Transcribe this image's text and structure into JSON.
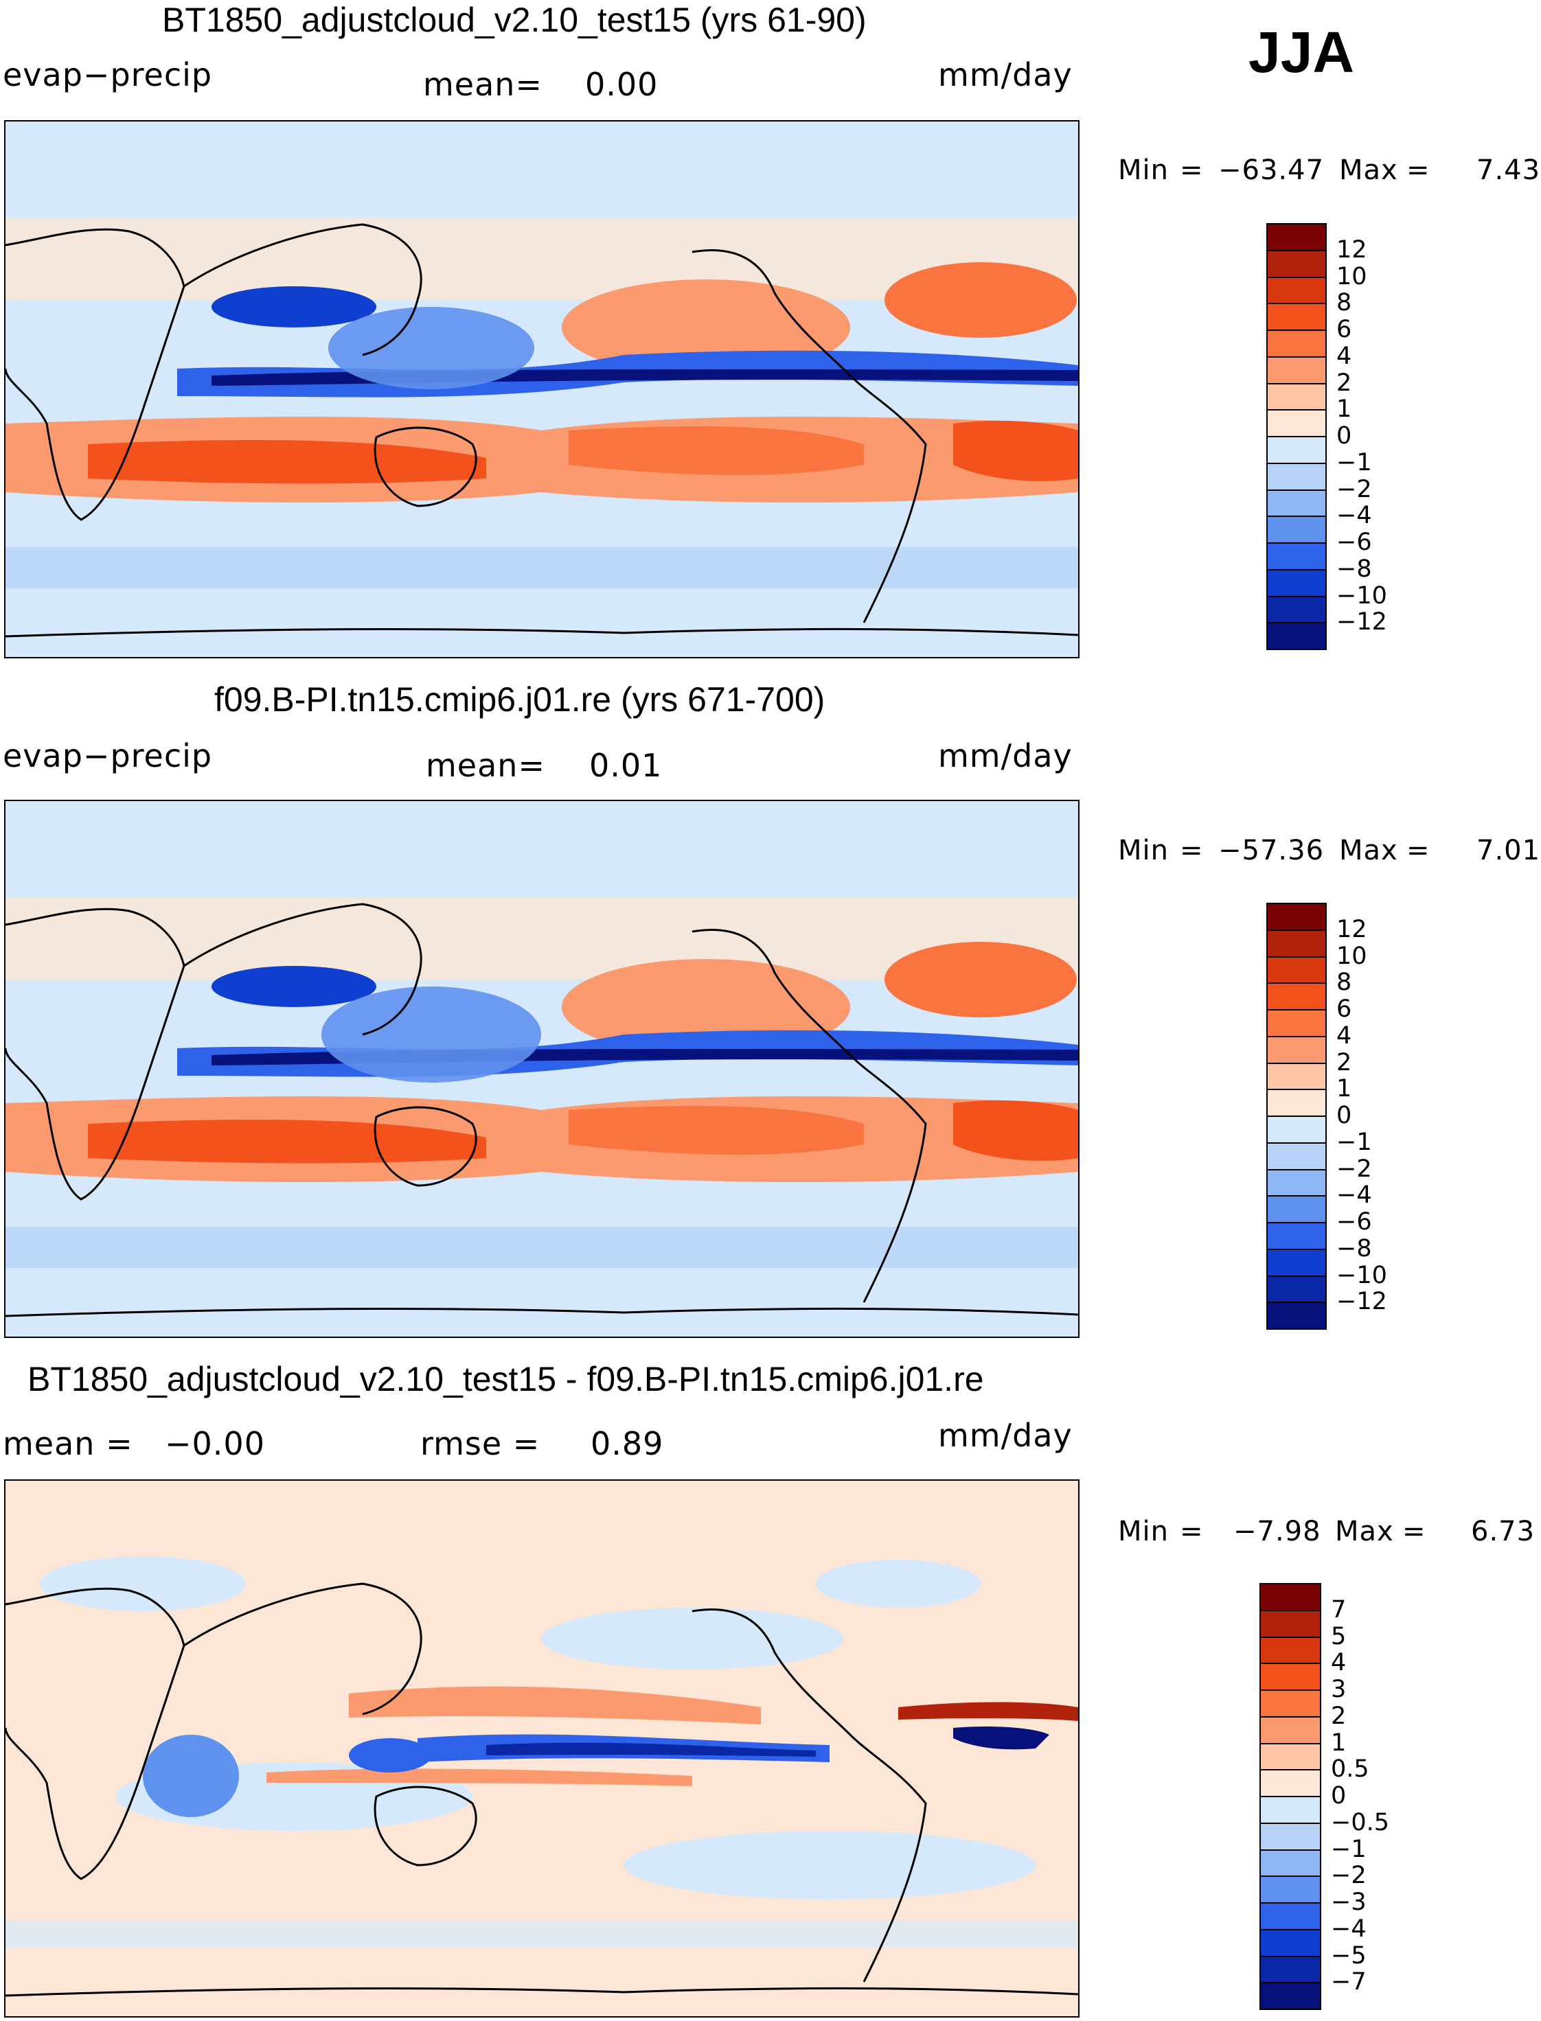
{
  "season": "JJA",
  "panels": [
    {
      "title": "BT1850_adjustcloud_v2.10_test15 (yrs 61-90)",
      "left_label": "evap−precip",
      "center_label": "mean=",
      "center_value": "0.00",
      "right_label": "mm/day",
      "min_label": "Min",
      "min_value": "−63.47",
      "max_label": "Max",
      "max_value": "7.43",
      "colorbar": {
        "labels": [
          "12",
          "10",
          "8",
          "6",
          "4",
          "2",
          "1",
          "0",
          "−1",
          "−2",
          "−4",
          "−6",
          "−8",
          "−10",
          "−12"
        ],
        "colors": [
          "#7a0403",
          "#b0220c",
          "#d9380f",
          "#f4521c",
          "#f9743e",
          "#fb9a6e",
          "#fcc6a6",
          "#fde6d5",
          "#d6e8fb",
          "#b6d3f7",
          "#8eb8f3",
          "#5f91ee",
          "#2e62ea",
          "#0f3fd1",
          "#0a27a5",
          "#06117b"
        ]
      }
    },
    {
      "title": "f09.B-PI.tn15.cmip6.j01.re (yrs 671-700)",
      "left_label": "evap−precip",
      "center_label": "mean=",
      "center_value": "0.01",
      "right_label": "mm/day",
      "min_label": "Min",
      "min_value": "−57.36",
      "max_label": "Max",
      "max_value": "7.01",
      "colorbar": {
        "labels": [
          "12",
          "10",
          "8",
          "6",
          "4",
          "2",
          "1",
          "0",
          "−1",
          "−2",
          "−4",
          "−6",
          "−8",
          "−10",
          "−12"
        ],
        "colors": [
          "#7a0403",
          "#b0220c",
          "#d9380f",
          "#f4521c",
          "#f9743e",
          "#fb9a6e",
          "#fcc6a6",
          "#fde6d5",
          "#d6e8fb",
          "#b6d3f7",
          "#8eb8f3",
          "#5f91ee",
          "#2e62ea",
          "#0f3fd1",
          "#0a27a5",
          "#06117b"
        ]
      }
    },
    {
      "title": "BT1850_adjustcloud_v2.10_test15 - f09.B-PI.tn15.cmip6.j01.re",
      "left_label": "mean =",
      "left_value": "−0.00",
      "center_label": "rmse =",
      "center_value": "0.89",
      "right_label": "mm/day",
      "min_label": "Min",
      "min_value": "−7.98",
      "max_label": "Max",
      "max_value": "6.73",
      "colorbar": {
        "labels": [
          "7",
          "5",
          "4",
          "3",
          "2",
          "1",
          "0.5",
          "0",
          "−0.5",
          "−1",
          "−2",
          "−3",
          "−4",
          "−5",
          "−7"
        ],
        "colors": [
          "#7a0403",
          "#b0220c",
          "#d9380f",
          "#f4521c",
          "#f9743e",
          "#fb9a6e",
          "#fcc6a6",
          "#fde6d5",
          "#d6e8fb",
          "#b6d3f7",
          "#8eb8f3",
          "#5f91ee",
          "#2e62ea",
          "#0f3fd1",
          "#0a27a5",
          "#06117b"
        ]
      }
    }
  ],
  "colors": {
    "land": "#fde6d5",
    "ocean_neg": "#d6e8fb",
    "deep_neg": "#06117b",
    "pos_strong": "#f4521c",
    "coastline": "#000000"
  }
}
